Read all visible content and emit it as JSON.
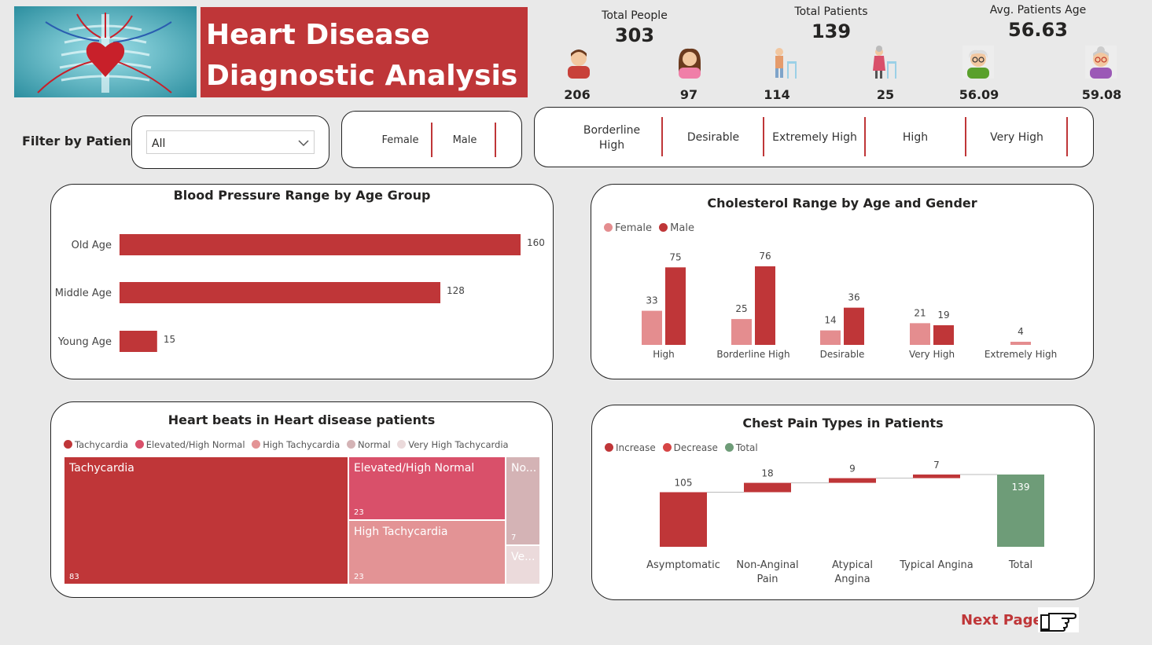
{
  "header": {
    "title_line1": "Heart Disease",
    "title_line2": "Diagnostic Analysis",
    "hero_image": "heart-anatomy-illustration"
  },
  "kpis": {
    "total_people": {
      "label": "Total People",
      "value": "303"
    },
    "total_patients": {
      "label": "Total Patients",
      "value": "139"
    },
    "avg_age": {
      "label": "Avg. Patients Age",
      "value": "56.63"
    },
    "breakdown": [
      {
        "icon": "male-avatar-icon",
        "value": "206"
      },
      {
        "icon": "female-avatar-icon",
        "value": "97"
      },
      {
        "icon": "elderly-man-walker-icon",
        "value": "114"
      },
      {
        "icon": "elderly-woman-walker-icon",
        "value": "25"
      },
      {
        "icon": "old-man-avatar-icon",
        "value": "56.09"
      },
      {
        "icon": "old-woman-avatar-icon",
        "value": "59.08"
      }
    ]
  },
  "filters": {
    "label": "Filter by Patient",
    "dropdown_value": "All",
    "gender_options": [
      "Female",
      "Male"
    ],
    "cholesterol_options": [
      "Borderline High",
      "Desirable",
      "Extremely High",
      "High",
      "Very High"
    ]
  },
  "colors": {
    "accent": "#bf3638",
    "light": "#e48d8f",
    "pink": "#d9506a",
    "mid": "#e39395",
    "pale": "#d4b3b5",
    "verypale": "#ebdadb",
    "total": "#6e9c78"
  },
  "bp_chart": {
    "title": "Blood Pressure Range by Age Group",
    "chart_data": {
      "type": "bar",
      "orientation": "horizontal",
      "categories": [
        "Old Age",
        "Middle Age",
        "Young Age"
      ],
      "values": [
        160,
        128,
        15
      ]
    }
  },
  "chol_chart": {
    "title": "Cholesterol Range by Age and Gender",
    "legend": [
      "Female",
      "Male"
    ],
    "chart_data": {
      "type": "bar",
      "categories": [
        "High",
        "Borderline High",
        "Desirable",
        "Very High",
        "Extremely High"
      ],
      "series": [
        {
          "name": "Female",
          "values": [
            33,
            25,
            14,
            21,
            4
          ]
        },
        {
          "name": "Male",
          "values": [
            75,
            76,
            36,
            19,
            null
          ]
        }
      ]
    }
  },
  "hb_chart": {
    "title": "Heart beats in Heart disease patients",
    "legend": [
      "Tachycardia",
      "Elevated/High Normal",
      "High Tachycardia",
      "Normal",
      "Very High Tachycardia"
    ],
    "cells": [
      {
        "label": "Tachycardia",
        "value": "83"
      },
      {
        "label": "Elevated/High Normal",
        "value": "23"
      },
      {
        "label": "High Tachycardia",
        "value": "23"
      },
      {
        "label": "No...",
        "value": "7"
      },
      {
        "label": "Ve...",
        "value": ""
      }
    ],
    "chart_data": {
      "type": "treemap",
      "categories": [
        "Tachycardia",
        "Elevated/High Normal",
        "High Tachycardia",
        "Normal",
        "Very High Tachycardia"
      ],
      "values": [
        83,
        23,
        23,
        7,
        3
      ]
    }
  },
  "cp_chart": {
    "title": "Chest Pain Types in Patients",
    "legend": [
      "Increase",
      "Decrease",
      "Total"
    ],
    "chart_data": {
      "type": "waterfall",
      "categories": [
        "Asymptomatic",
        "Non-Anginal Pain",
        "Atypical Angina",
        "Typical Angina",
        "Total"
      ],
      "values": [
        105,
        18,
        9,
        7,
        139
      ]
    }
  },
  "footer": {
    "next_label": "Next Page",
    "next_icon": "pointing-hand-icon"
  }
}
